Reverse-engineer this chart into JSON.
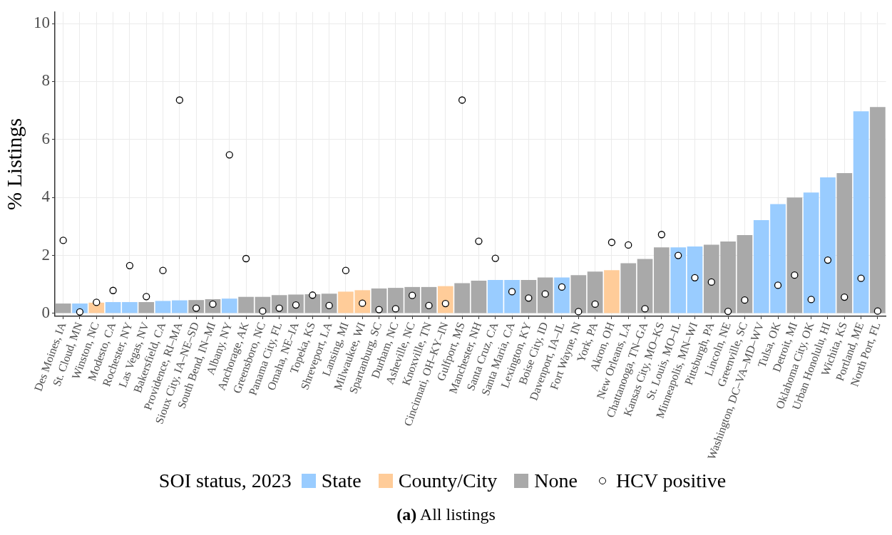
{
  "chart_data": {
    "type": "bar",
    "stacked": true,
    "ylabel": "% Listings",
    "legend_title": "SOI status, 2023",
    "legend": "bottom",
    "grid": true,
    "marker": "circle",
    "annotations": [
      "(a) All listings"
    ],
    "ylim": [
      -0.1,
      10.4
    ],
    "yticks": [
      0,
      2,
      4,
      6,
      8,
      10
    ],
    "categories": [
      "Des Moines, IA",
      "St. Cloud, MN",
      "Winston, NC",
      "Modesto, CA",
      "Rochester, NY",
      "Las Vegas, NV",
      "Bakersfield, CA",
      "Providence, RI–MA",
      "Sioux City, IA–NE–SD",
      "South Bend, IN–MI",
      "Albany, NY",
      "Anchorage, AK",
      "Greensboro, NC",
      "Panama City, FL",
      "Omaha, NE–IA",
      "Topeka, KS",
      "Shreveport, LA",
      "Lansing, MI",
      "Milwaukee, WI",
      "Spartanburg, SC",
      "Durham, NC",
      "Asheville, NC",
      "Knoxville, TN",
      "Cincinnati, OH–KY–IN",
      "Gulfport, MS",
      "Manchester, NH",
      "Santa Cruz, CA",
      "Santa Maria, CA",
      "Lexington, KY",
      "Boise City, ID",
      "Davenport, IA–IL",
      "Fort Wayne, IN",
      "York, PA",
      "Akron, OH",
      "New Orleans, LA",
      "Chattanooga, TN–GA",
      "Kansas City, MO–KS",
      "St. Louis, MO–IL",
      "Minneapolis, MN–WI",
      "Pittsburgh, PA",
      "Lincoln, NE",
      "Greenville, SC",
      "Washington, DC–VA–MD–WV",
      "Tulsa, OK",
      "Detroit, MI",
      "Oklahoma City, OK",
      "Urban Honolulu, HI",
      "Wichita, KS",
      "Portland, ME",
      "North Port, FL"
    ],
    "series": [
      {
        "name": "State",
        "color": "#99ccff",
        "values": [
          null,
          0.34,
          null,
          0.39,
          0.39,
          null,
          0.43,
          0.45,
          null,
          null,
          0.51,
          null,
          null,
          null,
          null,
          null,
          null,
          null,
          null,
          null,
          null,
          null,
          null,
          null,
          null,
          null,
          1.15,
          1.15,
          null,
          null,
          1.24,
          null,
          null,
          null,
          null,
          null,
          null,
          2.28,
          2.31,
          null,
          null,
          null,
          3.22,
          3.77,
          null,
          4.17,
          4.69,
          null,
          6.97,
          null
        ]
      },
      {
        "name": "County/City",
        "color": "#ffcc99",
        "values": [
          null,
          null,
          0.37,
          null,
          null,
          null,
          null,
          null,
          null,
          null,
          null,
          null,
          null,
          null,
          null,
          null,
          null,
          0.75,
          0.8,
          null,
          null,
          null,
          null,
          0.94,
          null,
          null,
          null,
          null,
          null,
          null,
          null,
          null,
          null,
          1.49,
          null,
          null,
          null,
          null,
          null,
          null,
          null,
          null,
          null,
          null,
          null,
          null,
          null,
          null,
          null,
          null
        ]
      },
      {
        "name": "None",
        "color": "#a9a9a9",
        "values": [
          0.34,
          null,
          null,
          null,
          null,
          0.39,
          null,
          null,
          0.46,
          0.49,
          null,
          0.57,
          0.57,
          0.63,
          0.65,
          0.66,
          0.68,
          null,
          null,
          0.86,
          0.88,
          0.91,
          0.91,
          null,
          1.04,
          1.13,
          null,
          null,
          1.15,
          1.24,
          null,
          1.32,
          1.44,
          null,
          1.73,
          1.88,
          2.28,
          null,
          null,
          2.37,
          2.48,
          2.7,
          null,
          null,
          4.0,
          null,
          null,
          4.84,
          null,
          7.12
        ]
      },
      {
        "name": "HCV positive",
        "type": "scatter",
        "color": "#000000",
        "x": [
          "Des Moines, IA",
          "St. Cloud, MN",
          "Winston, NC",
          "Modesto, CA",
          "Rochester, NY",
          "Las Vegas, NV",
          "Bakersfield, CA",
          "Providence, RI–MA",
          "Sioux City, IA–NE–SD",
          "South Bend, IN–MI",
          "Albany, NY",
          "Anchorage, AK",
          "Greensboro, NC",
          "Panama City, FL",
          "Omaha, NE–IA",
          "Topeka, KS",
          "Shreveport, LA",
          "Lansing, MI",
          "Milwaukee, WI",
          "Spartanburg, SC",
          "Durham, NC",
          "Asheville, NC",
          "Knoxville, TN",
          "Cincinnati, OH–KY–IN",
          "Gulfport, MS",
          "Manchester, NH",
          "Santa Cruz, CA",
          "Santa Maria, CA",
          "Lexington, KY",
          "Boise City, ID",
          "Davenport, IA–IL",
          "Fort Wayne, IN",
          "York, PA",
          "Akron, OH",
          "New Orleans, LA",
          "Chattanooga, TN–GA",
          "Kansas City, MO–KS",
          "St. Louis, MO–IL",
          "Minneapolis, MN–WI",
          "Pittsburgh, PA",
          "Lincoln, NE",
          "Greenville, SC",
          "Tulsa, OK",
          "Detroit, MI",
          "Oklahoma City, OK",
          "Urban Honolulu, HI",
          "Wichita, KS",
          "Portland, ME",
          "North Port, FL"
        ],
        "values": [
          2.52,
          0.05,
          0.38,
          0.79,
          1.65,
          0.58,
          1.48,
          7.36,
          0.18,
          0.32,
          5.47,
          1.89,
          0.08,
          0.18,
          0.29,
          0.63,
          0.27,
          1.48,
          0.35,
          0.13,
          0.16,
          0.62,
          0.27,
          0.34,
          7.36,
          2.49,
          1.9,
          0.75,
          0.53,
          0.67,
          0.91,
          0.06,
          0.32,
          2.45,
          2.36,
          0.16,
          2.72,
          2.0,
          1.23,
          1.08,
          0.07,
          0.46,
          0.97,
          1.32,
          0.48,
          1.84,
          0.56,
          1.21,
          0.08
        ]
      }
    ]
  }
}
